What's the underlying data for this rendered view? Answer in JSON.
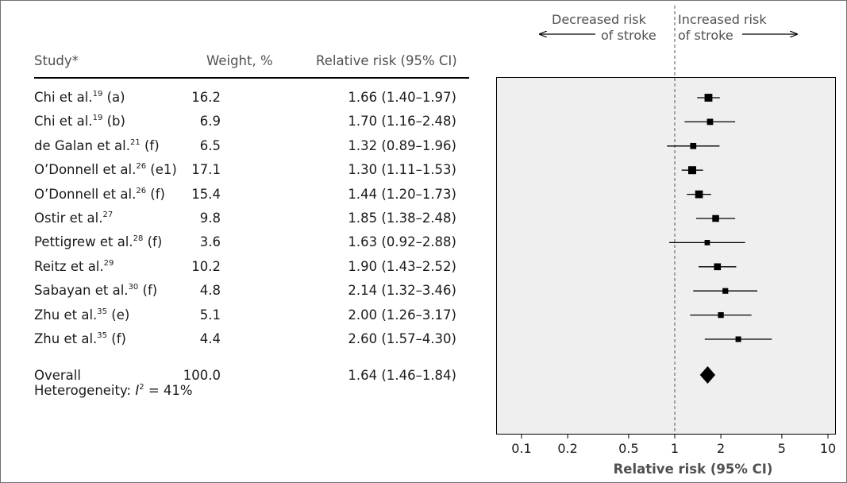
{
  "header": {
    "study": "Study*",
    "weight": "Weight, %",
    "rr": "Relative risk (95% CI)"
  },
  "direction": {
    "left_line1": "Decreased risk",
    "left_line2": "of stroke",
    "right_line1": "Increased risk",
    "right_line2": "of stroke"
  },
  "rows": [
    {
      "name": "Chi et al.",
      "ref": "19",
      "suffix": " (a)",
      "weight": "16.2",
      "rr_text": "1.66 (1.40–1.97)"
    },
    {
      "name": "Chi et al.",
      "ref": "19",
      "suffix": " (b)",
      "weight": "6.9",
      "rr_text": "1.70 (1.16–2.48)"
    },
    {
      "name": "de Galan et al.",
      "ref": "21",
      "suffix": " (f)",
      "weight": "6.5",
      "rr_text": "1.32 (0.89–1.96)"
    },
    {
      "name": "O’Donnell et al.",
      "ref": "26",
      "suffix": " (e1)",
      "weight": "17.1",
      "rr_text": "1.30 (1.11–1.53)"
    },
    {
      "name": "O’Donnell et al.",
      "ref": "26",
      "suffix": " (f)",
      "weight": "15.4",
      "rr_text": "1.44 (1.20–1.73)"
    },
    {
      "name": "Ostir et al.",
      "ref": "27",
      "suffix": "",
      "weight": "9.8",
      "rr_text": "1.85 (1.38–2.48)"
    },
    {
      "name": "Pettigrew et al.",
      "ref": "28",
      "suffix": " (f)",
      "weight": "3.6",
      "rr_text": "1.63 (0.92–2.88)"
    },
    {
      "name": "Reitz et al.",
      "ref": "29",
      "suffix": "",
      "weight": "10.2",
      "rr_text": "1.90 (1.43–2.52)"
    },
    {
      "name": "Sabayan et al.",
      "ref": "30",
      "suffix": " (f)",
      "weight": "4.8",
      "rr_text": "2.14 (1.32–3.46)"
    },
    {
      "name": "Zhu et al.",
      "ref": "35",
      "suffix": " (e)",
      "weight": "5.1",
      "rr_text": "2.00 (1.26–3.17)"
    },
    {
      "name": "Zhu et al.",
      "ref": "35",
      "suffix": " (f)",
      "weight": "4.4",
      "rr_text": "2.60 (1.57–4.30)"
    }
  ],
  "overall": {
    "label": "Overall",
    "weight": "100.0",
    "rr_text": "1.64 (1.46–1.84)",
    "heterogeneity_prefix": "Heterogeneity: ",
    "heterogeneity_i": "I",
    "heterogeneity_sup": "2",
    "heterogeneity_value": " = 41%"
  },
  "chart_data": {
    "type": "scatter",
    "subtype": "forest-plot",
    "xlabel": "Relative risk (95% CI)",
    "xscale": "log",
    "xlim": [
      0.08,
      11
    ],
    "xticks": [
      0.1,
      0.2,
      0.5,
      1,
      2,
      5,
      10
    ],
    "xtick_labels": [
      "0.1",
      "0.2",
      "0.5",
      "1",
      "2",
      "5",
      "10"
    ],
    "reference_line": 1,
    "studies": [
      {
        "label": "Chi et al. (a)",
        "weight": 16.2,
        "rr": 1.66,
        "lo": 1.4,
        "hi": 1.97
      },
      {
        "label": "Chi et al. (b)",
        "weight": 6.9,
        "rr": 1.7,
        "lo": 1.16,
        "hi": 2.48
      },
      {
        "label": "de Galan et al. (f)",
        "weight": 6.5,
        "rr": 1.32,
        "lo": 0.89,
        "hi": 1.96
      },
      {
        "label": "O’Donnell et al. (e1)",
        "weight": 17.1,
        "rr": 1.3,
        "lo": 1.11,
        "hi": 1.53
      },
      {
        "label": "O’Donnell et al. (f)",
        "weight": 15.4,
        "rr": 1.44,
        "lo": 1.2,
        "hi": 1.73
      },
      {
        "label": "Ostir et al.",
        "weight": 9.8,
        "rr": 1.85,
        "lo": 1.38,
        "hi": 2.48
      },
      {
        "label": "Pettigrew et al. (f)",
        "weight": 3.6,
        "rr": 1.63,
        "lo": 0.92,
        "hi": 2.88
      },
      {
        "label": "Reitz et al.",
        "weight": 10.2,
        "rr": 1.9,
        "lo": 1.43,
        "hi": 2.52
      },
      {
        "label": "Sabayan et al. (f)",
        "weight": 4.8,
        "rr": 2.14,
        "lo": 1.32,
        "hi": 3.46
      },
      {
        "label": "Zhu et al. (e)",
        "weight": 5.1,
        "rr": 2.0,
        "lo": 1.26,
        "hi": 3.17
      },
      {
        "label": "Zhu et al. (f)",
        "weight": 4.4,
        "rr": 2.6,
        "lo": 1.57,
        "hi": 4.3
      }
    ],
    "overall": {
      "label": "Overall",
      "weight": 100.0,
      "rr": 1.64,
      "lo": 1.46,
      "hi": 1.84
    },
    "grid": false,
    "colors": {
      "panel_bg": "#efefef",
      "marker": "#000000",
      "text": "#1a1a1a",
      "muted": "#505050"
    }
  }
}
